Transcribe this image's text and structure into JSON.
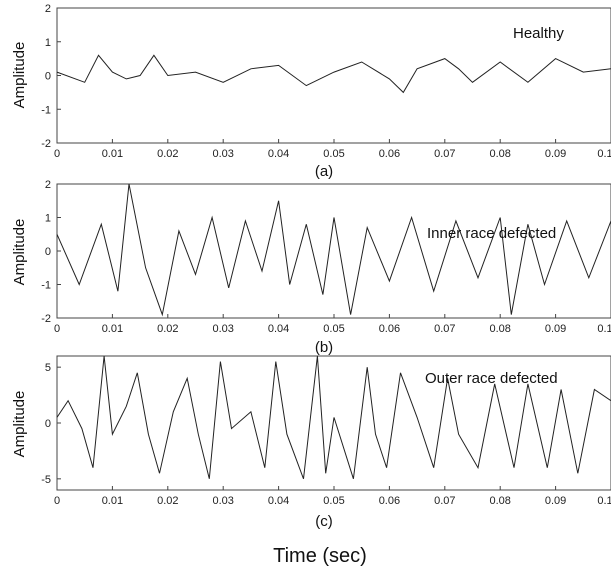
{
  "figure": {
    "xlabel": "Time (sec)"
  },
  "chart_data": [
    {
      "type": "line",
      "subplot_label": "(a)",
      "annotation": "Healthy",
      "ylabel": "Amplitude",
      "xlim": [
        0,
        0.1
      ],
      "ylim": [
        -2,
        2
      ],
      "x_ticks": [
        "0",
        "0.01",
        "0.02",
        "0.03",
        "0.04",
        "0.05",
        "0.06",
        "0.07",
        "0.08",
        "0.09",
        "0.1"
      ],
      "y_ticks": [
        "2",
        "1",
        "0",
        "-1",
        "-2"
      ],
      "grid": false,
      "series": [
        {
          "x": [
            0,
            0.005,
            0.0075,
            0.01,
            0.0125,
            0.015,
            0.0175,
            0.02,
            0.025,
            0.03,
            0.035,
            0.04,
            0.045,
            0.05,
            0.055,
            0.06,
            0.0625,
            0.065,
            0.07,
            0.0725,
            0.075,
            0.08,
            0.085,
            0.09,
            0.095,
            0.1
          ],
          "y": [
            0.1,
            -0.2,
            0.6,
            0.1,
            -0.1,
            0.0,
            0.6,
            0.0,
            0.1,
            -0.2,
            0.2,
            0.3,
            -0.3,
            0.1,
            0.4,
            -0.1,
            -0.5,
            0.2,
            0.5,
            0.2,
            -0.2,
            0.4,
            -0.2,
            0.5,
            0.1,
            0.2
          ]
        }
      ]
    },
    {
      "type": "line",
      "subplot_label": "(b)",
      "annotation": "Inner race defected",
      "ylabel": "Amplitude",
      "xlim": [
        0,
        0.1
      ],
      "ylim": [
        -2,
        2
      ],
      "x_ticks": [
        "0",
        "0.01",
        "0.02",
        "0.03",
        "0.04",
        "0.05",
        "0.06",
        "0.07",
        "0.08",
        "0.09",
        "0.1"
      ],
      "y_ticks": [
        "2",
        "1",
        "0",
        "-1",
        "-2"
      ],
      "grid": false,
      "series": [
        {
          "x": [
            0,
            0.004,
            0.008,
            0.011,
            0.013,
            0.016,
            0.019,
            0.022,
            0.025,
            0.028,
            0.031,
            0.034,
            0.037,
            0.04,
            0.042,
            0.045,
            0.048,
            0.05,
            0.053,
            0.056,
            0.06,
            0.064,
            0.068,
            0.072,
            0.076,
            0.08,
            0.082,
            0.085,
            0.088,
            0.092,
            0.096,
            0.1
          ],
          "y": [
            0.5,
            -1.0,
            0.8,
            -1.2,
            2.0,
            -0.5,
            -1.9,
            0.6,
            -0.7,
            1.0,
            -1.1,
            0.9,
            -0.6,
            1.5,
            -1.0,
            0.8,
            -1.3,
            1.0,
            -1.9,
            0.7,
            -0.9,
            1.0,
            -1.2,
            0.9,
            -0.8,
            1.0,
            -1.9,
            0.8,
            -1.0,
            0.9,
            -0.8,
            0.9
          ]
        }
      ]
    },
    {
      "type": "line",
      "subplot_label": "(c)",
      "annotation": "Outer race defected",
      "ylabel": "Amplitude",
      "xlim": [
        0,
        0.1
      ],
      "ylim": [
        -6,
        6
      ],
      "x_ticks": [
        "0",
        "0.01",
        "0.02",
        "0.03",
        "0.04",
        "0.05",
        "0.06",
        "0.07",
        "0.08",
        "0.09",
        "0.1"
      ],
      "y_ticks": [
        "5",
        "0",
        "-5"
      ],
      "grid": false,
      "series": [
        {
          "x": [
            0,
            0.002,
            0.0045,
            0.0065,
            0.0085,
            0.01,
            0.0125,
            0.0145,
            0.0165,
            0.0185,
            0.021,
            0.0235,
            0.0255,
            0.0275,
            0.0295,
            0.0315,
            0.035,
            0.0375,
            0.0395,
            0.0415,
            0.0445,
            0.047,
            0.0485,
            0.05,
            0.0535,
            0.056,
            0.0575,
            0.0595,
            0.062,
            0.065,
            0.068,
            0.0705,
            0.0725,
            0.076,
            0.079,
            0.0825,
            0.085,
            0.0885,
            0.091,
            0.094,
            0.097,
            0.1
          ],
          "y": [
            0.5,
            2.0,
            -0.5,
            -4.0,
            6.0,
            -1.0,
            1.5,
            4.5,
            -1.0,
            -4.5,
            1.0,
            4.0,
            -1.0,
            -5.0,
            5.5,
            -0.5,
            1.0,
            -4.0,
            5.5,
            -1.0,
            -5.0,
            6.0,
            -4.5,
            0.5,
            -5.0,
            5.0,
            -1.0,
            -4.0,
            4.5,
            0.5,
            -4.0,
            4.0,
            -1.0,
            -4.0,
            3.5,
            -4.0,
            3.5,
            -4.0,
            3.0,
            -4.5,
            3.0,
            2.0
          ]
        }
      ]
    }
  ]
}
